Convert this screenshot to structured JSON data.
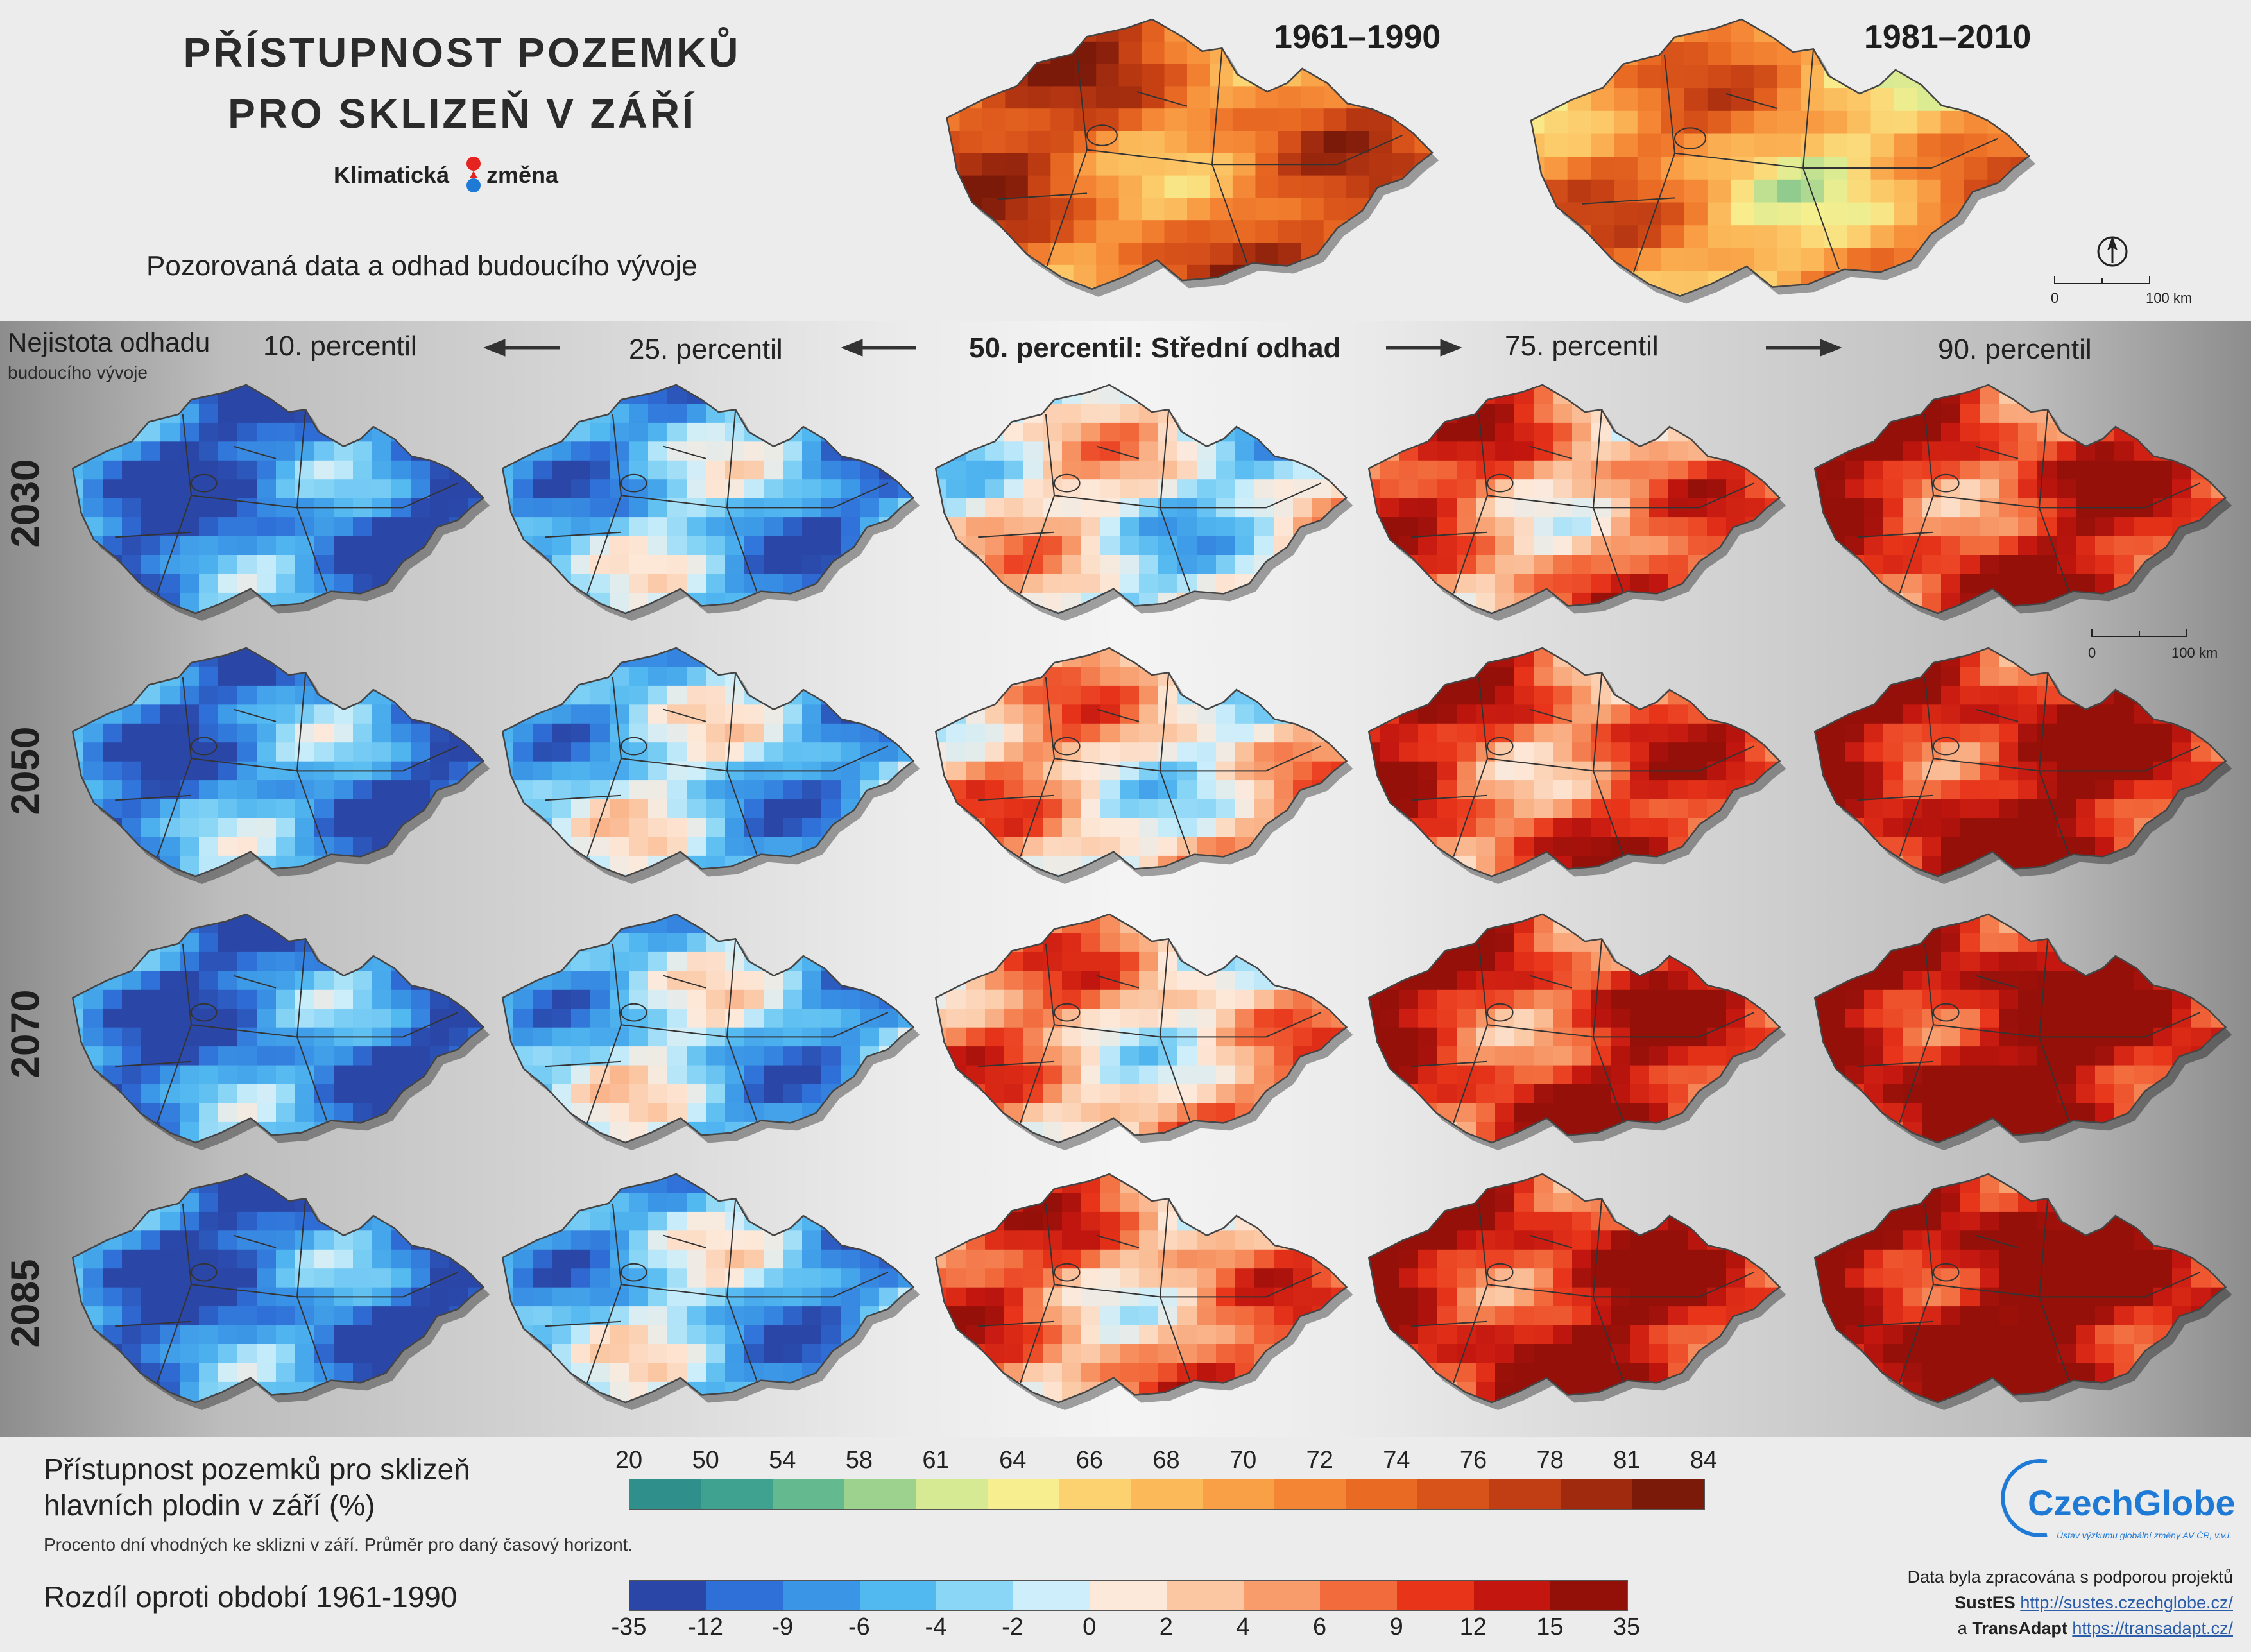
{
  "header": {
    "title_line1": "PŘÍSTUPNOST POZEMKŮ",
    "title_line2": "PRO SKLIZEŇ V ZÁŘÍ",
    "brand_left": "Klimatická",
    "brand_right": "změna",
    "subtitle": "Pozorovaná data a odhad budoucího vývoje"
  },
  "observed": {
    "period1": "1961–1990",
    "period2": "1981–2010",
    "scale_zero": "0",
    "scale_max": "100 km"
  },
  "grid": {
    "uncertainty_line1": "Nejistota odhadu",
    "uncertainty_line2": "budoucího vývoje",
    "columns": [
      "10. percentil",
      "25. percentil",
      "50. percentil: Střední odhad",
      "75. percentil",
      "90. percentil"
    ],
    "rows": [
      "2030",
      "2050",
      "2070",
      "2085"
    ],
    "scale_zero": "0",
    "scale_max": "100 km"
  },
  "legend": {
    "title_line1": "Přístupnost pozemků pro sklizeň",
    "title_line2": "hlavních plodin v září (%)",
    "note": "Procento dní vhodných ke sklizni v září. Průměr pro daný časový horizont.",
    "diff_title": "Rozdíl oproti období 1961-1990",
    "abs_ticks": [
      "20",
      "50",
      "54",
      "58",
      "61",
      "64",
      "66",
      "68",
      "70",
      "72",
      "74",
      "76",
      "78",
      "81",
      "84"
    ],
    "abs_colors": [
      "#2f8f8a",
      "#3fa190",
      "#64b98f",
      "#9cd18e",
      "#d6ea93",
      "#f7ef8f",
      "#fcd170",
      "#fbb95a",
      "#f9a046",
      "#f48534",
      "#e96a23",
      "#d8531a",
      "#c13d13",
      "#9f2a0e",
      "#7c1a0a"
    ],
    "diff_ticks": [
      "-35",
      "-12",
      "-9",
      "-6",
      "-4",
      "-2",
      "0",
      "2",
      "4",
      "6",
      "9",
      "12",
      "15",
      "35"
    ],
    "diff_colors": [
      "#2a47a8",
      "#2f6fd8",
      "#3a95e6",
      "#52b8f0",
      "#8ad6f6",
      "#cdeefa",
      "#fde9da",
      "#fbc7a3",
      "#f89c6c",
      "#f26b3d",
      "#e8351a",
      "#c2160f",
      "#931009"
    ]
  },
  "credits": {
    "logo": "CzechGlobe",
    "logo_sub": "Ústav výzkumu globální změny AV ČR, v.v.i.",
    "line1": "Data byla zpracována s podporou projektů",
    "proj1": "SustES",
    "link1": "http://sustes.czechglobe.cz/",
    "a": "a",
    "proj2": "TransAdapt",
    "link2": "https://transadapt.cz/"
  },
  "map_levels": [
    [
      0.1,
      0.25,
      0.45,
      0.7,
      0.85
    ],
    [
      0.15,
      0.3,
      0.55,
      0.78,
      0.92
    ],
    [
      0.12,
      0.3,
      0.6,
      0.85,
      0.97
    ],
    [
      0.1,
      0.28,
      0.68,
      0.9,
      1.0
    ]
  ],
  "observed_levels": [
    0.7,
    0.55
  ]
}
